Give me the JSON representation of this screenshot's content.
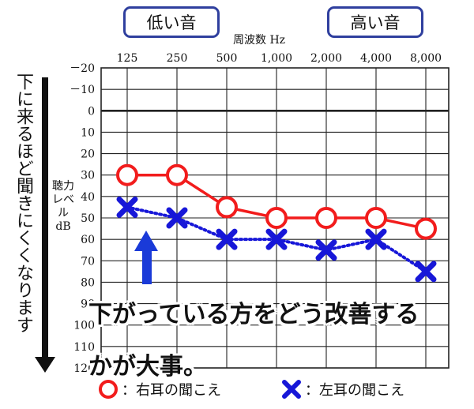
{
  "chart_data": {
    "type": "line",
    "xlabel": "周波数 Hz",
    "ylabel": "聴力レベル dB",
    "categories": [
      "125",
      "250",
      "500",
      "1,000",
      "2,000",
      "4,000",
      "8,000"
    ],
    "y_ticks": [
      "－20",
      "－10",
      "0",
      "10",
      "20",
      "30",
      "40",
      "50",
      "60",
      "70",
      "80",
      "90",
      "100",
      "110",
      "120"
    ],
    "y_tick_values": [
      -20,
      -10,
      0,
      10,
      20,
      30,
      40,
      50,
      60,
      70,
      80,
      90,
      100,
      110,
      120
    ],
    "ylim": [
      -20,
      120
    ],
    "y_inverted": true,
    "grid": true,
    "series": [
      {
        "name": "右耳の聞こえ",
        "marker": "circle",
        "line": "solid",
        "color": "#f21c1c",
        "values": [
          30,
          30,
          45,
          50,
          50,
          50,
          55
        ]
      },
      {
        "name": "左耳の聞こえ",
        "marker": "cross",
        "line": "dotted",
        "color": "#1717d8",
        "values": [
          45,
          50,
          60,
          60,
          65,
          60,
          75
        ]
      }
    ]
  },
  "labels": {
    "low_tone": "低い音",
    "high_tone": "高い音",
    "side_note": "下に来るほど聞きにくくなります",
    "callout_line1": "下がっている方をどう改善する",
    "callout_line2": "かが大事。",
    "legend_right": "：右耳の聞こえ",
    "legend_left": "：左耳の聞こえ"
  },
  "colors": {
    "tone_box_border": "#2f3f9e",
    "arrow": "#1a3ad8"
  }
}
